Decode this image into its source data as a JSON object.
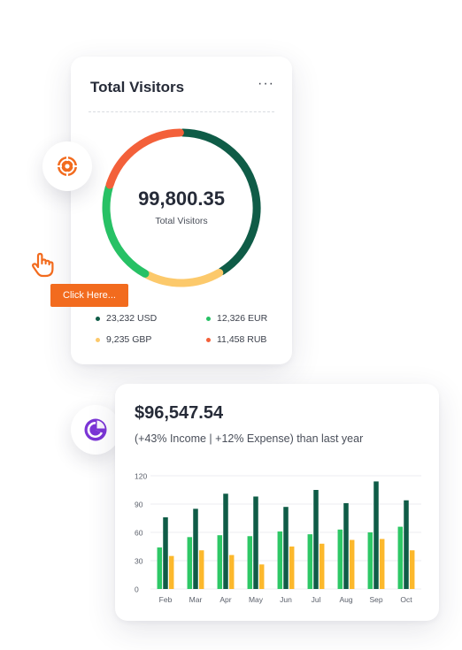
{
  "visitors_card": {
    "title": "Total Visitors",
    "more_label": "···",
    "total_value": "99,800.35",
    "total_label": "Total Visitors",
    "segments": [
      {
        "name": "USD",
        "value": 23232,
        "color": "#0f5c47"
      },
      {
        "name": "EUR",
        "value": 12326,
        "color": "#27c165"
      },
      {
        "name": "GBP",
        "value": 9235,
        "color": "#fcc96b"
      },
      {
        "name": "RUB",
        "value": 11458,
        "color": "#f3603a"
      }
    ],
    "legend": [
      {
        "text": "23,232 USD",
        "color": "#0f5c47"
      },
      {
        "text": "12,326 EUR",
        "color": "#27c165"
      },
      {
        "text": "9,235 GBP",
        "color": "#fcc96b"
      },
      {
        "text": "11,458 RUB",
        "color": "#f3603a"
      }
    ]
  },
  "click_button": {
    "label": "Click Here..."
  },
  "icons": {
    "target": "target-icon",
    "hand": "hand-pointer-icon",
    "pie": "pie-chart-icon"
  },
  "income_card": {
    "amount": "$96,547.54",
    "subtitle": "(+43% Income | +12% Expense) than last year"
  },
  "chart_data": {
    "type": "bar",
    "categories": [
      "Feb",
      "Mar",
      "Apr",
      "May",
      "Jun",
      "Jul",
      "Aug",
      "Sep",
      "Oct"
    ],
    "series": [
      {
        "values": [
          44,
          55,
          57,
          56,
          61,
          58,
          63,
          60,
          66
        ],
        "color": "#2ec866"
      },
      {
        "values": [
          76,
          85,
          101,
          98,
          87,
          105,
          91,
          114,
          94
        ],
        "color": "#0f5c47"
      },
      {
        "values": [
          35,
          41,
          36,
          26,
          45,
          48,
          52,
          53,
          41
        ],
        "color": "#fcb82c"
      }
    ],
    "yticks": [
      0,
      30,
      60,
      90,
      120
    ],
    "ylim": [
      0,
      120
    ],
    "grid": true
  }
}
